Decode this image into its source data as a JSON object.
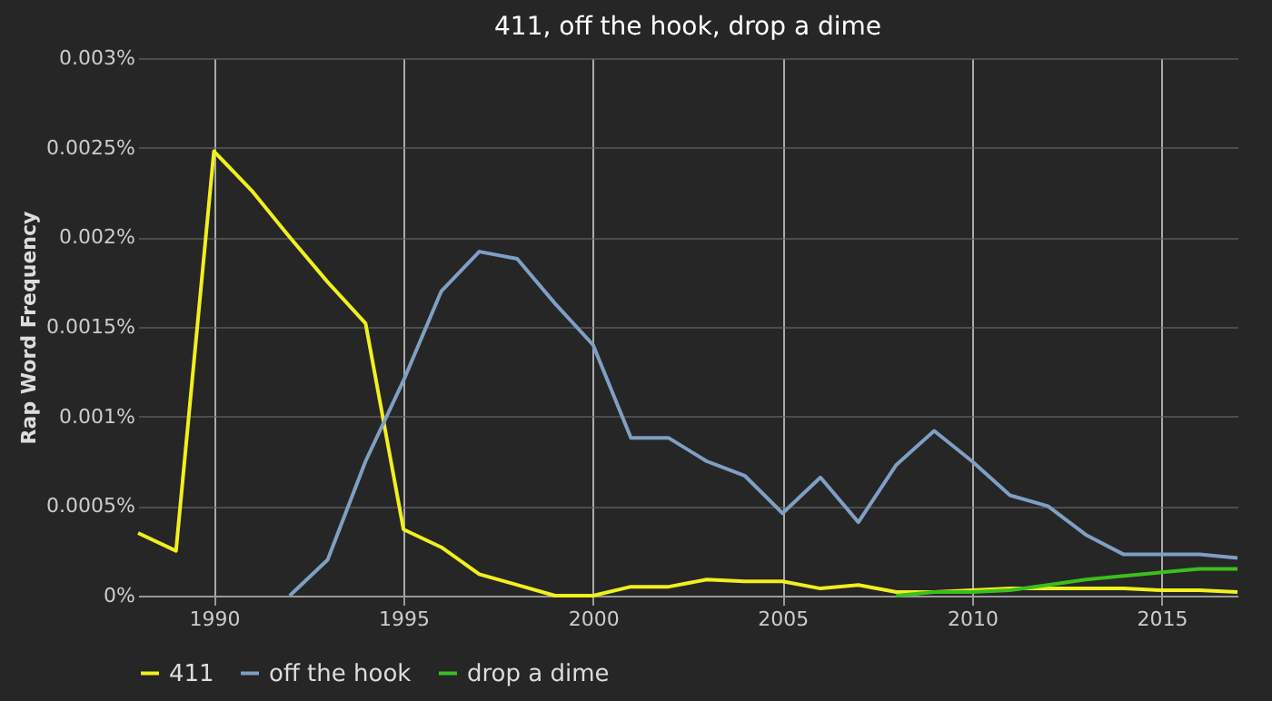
{
  "chart_data": {
    "type": "line",
    "title": "411, off the hook, drop a dime",
    "ylabel": "Rap Word Frequency",
    "x": [
      1988,
      1989,
      1990,
      1991,
      1992,
      1993,
      1994,
      1995,
      1996,
      1997,
      1998,
      1999,
      2000,
      2001,
      2002,
      2003,
      2004,
      2005,
      2006,
      2007,
      2008,
      2009,
      2010,
      2011,
      2012,
      2013,
      2014,
      2015,
      2016,
      2017
    ],
    "series": [
      {
        "name": "411",
        "color": "#f0f01e",
        "values": [
          0.00035,
          0.00025,
          0.00248,
          0.00226,
          0.002,
          0.00175,
          0.00152,
          0.00037,
          0.00027,
          0.00012,
          6e-05,
          0,
          0,
          5e-05,
          5e-05,
          9e-05,
          8e-05,
          8e-05,
          4e-05,
          6e-05,
          2e-05,
          2e-05,
          3e-05,
          4e-05,
          4e-05,
          4e-05,
          4e-05,
          3e-05,
          3e-05,
          2e-05
        ]
      },
      {
        "name": "off the hook",
        "color": "#7f9fc4",
        "values": [
          null,
          null,
          null,
          null,
          0,
          0.0002,
          0.00075,
          0.0012,
          0.0017,
          0.00192,
          0.00188,
          0.00163,
          0.0014,
          0.00088,
          0.00088,
          0.00075,
          0.00067,
          0.00046,
          0.00066,
          0.00041,
          0.00073,
          0.00092,
          0.00075,
          0.00056,
          0.0005,
          0.00034,
          0.00023,
          0.00023,
          0.00023,
          0.00021
        ]
      },
      {
        "name": "drop a dime",
        "color": "#3cbe1e",
        "values": [
          null,
          null,
          null,
          null,
          null,
          null,
          null,
          null,
          null,
          null,
          null,
          null,
          null,
          null,
          null,
          null,
          null,
          null,
          null,
          null,
          0,
          2e-05,
          2e-05,
          3e-05,
          6e-05,
          9e-05,
          0.00011,
          0.00013,
          0.00015,
          0.00015
        ]
      }
    ],
    "xlim": [
      1988,
      2017
    ],
    "xticks": [
      1990,
      1995,
      2000,
      2005,
      2010,
      2015
    ],
    "ylim": [
      0,
      0.003
    ],
    "yticks": [
      {
        "value": 0,
        "label": "0%"
      },
      {
        "value": 0.0005,
        "label": "0.0005%"
      },
      {
        "value": 0.001,
        "label": "0.001%"
      },
      {
        "value": 0.0015,
        "label": "0.0015%"
      },
      {
        "value": 0.002,
        "label": "0.002%"
      },
      {
        "value": 0.0025,
        "label": "0.0025%"
      },
      {
        "value": 0.003,
        "label": "0.003%"
      }
    ],
    "grid": true,
    "legend": "bottom",
    "marker": "none",
    "line_style": "solid"
  }
}
